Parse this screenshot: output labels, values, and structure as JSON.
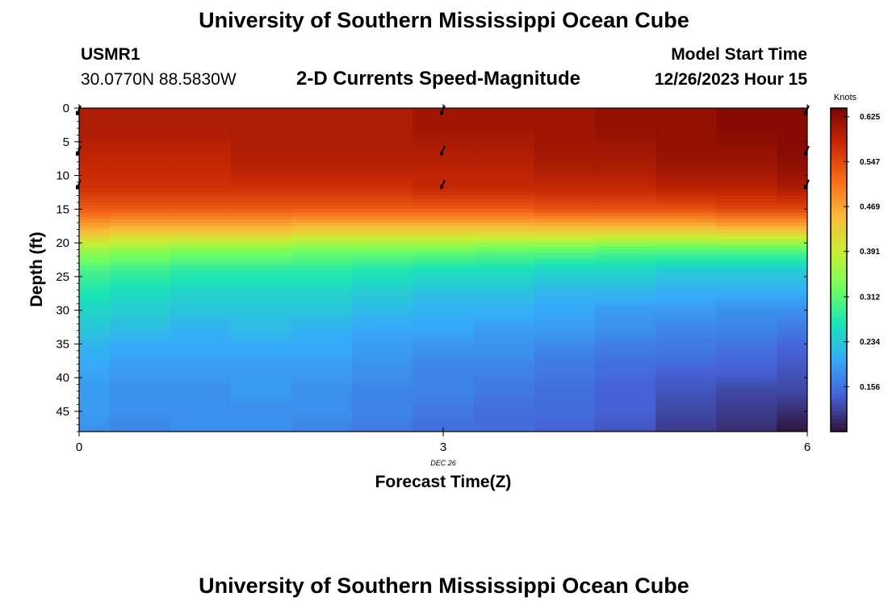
{
  "header": {
    "title": "University of Southern Mississippi Ocean Cube",
    "station": "USMR1",
    "coords": "30.0770N  88.5830W",
    "chart_subtitle": "2-D Currents Speed-Magnitude",
    "model_start_label": "Model Start Time",
    "model_start_value": "12/26/2023 Hour 15"
  },
  "footer": {
    "title": "University of Southern Mississippi Ocean Cube"
  },
  "colors": {
    "colormap": [
      "#30123b",
      "#4662d7",
      "#36aaf9",
      "#1ae4b6",
      "#72fe5e",
      "#c8ef34",
      "#faba39",
      "#f66b19",
      "#ca2a04",
      "#7a0403"
    ]
  },
  "chart_data": {
    "type": "heatmap",
    "title": "2-D Currents Speed-Magnitude",
    "xlabel": "Forecast Time(Z)",
    "ylabel": "Depth (ft)",
    "x_ticks": [
      "0",
      "3",
      "6"
    ],
    "x_date_label": "DEC 26",
    "y_ticks": [
      "0",
      "5",
      "10",
      "15",
      "20",
      "25",
      "30",
      "35",
      "40",
      "45"
    ],
    "xlim": [
      0,
      6
    ],
    "ylim": [
      48,
      0
    ],
    "colorbar": {
      "label": "Knots",
      "ticks": [
        "0.625",
        "0.547",
        "0.469",
        "0.391",
        "0.312",
        "0.234",
        "0.156"
      ],
      "range": [
        0.078,
        0.64
      ]
    },
    "time_columns": [
      0,
      0.5,
      1,
      1.5,
      2,
      2.5,
      3,
      3.5,
      4,
      4.5,
      5,
      5.5,
      6
    ],
    "depths": [
      0,
      3,
      6,
      9,
      12,
      15,
      18,
      21,
      24,
      27,
      30,
      33,
      36,
      39,
      42,
      45,
      48
    ],
    "values": [
      [
        0.6,
        0.6,
        0.59,
        0.58,
        0.57,
        0.53,
        0.46,
        0.36,
        0.3,
        0.27,
        0.25,
        0.23,
        0.21,
        0.2,
        0.19,
        0.19,
        0.18
      ],
      [
        0.6,
        0.6,
        0.59,
        0.58,
        0.57,
        0.53,
        0.45,
        0.35,
        0.29,
        0.26,
        0.24,
        0.22,
        0.2,
        0.19,
        0.18,
        0.18,
        0.17
      ],
      [
        0.6,
        0.6,
        0.59,
        0.58,
        0.57,
        0.53,
        0.45,
        0.34,
        0.28,
        0.25,
        0.23,
        0.21,
        0.2,
        0.19,
        0.18,
        0.18,
        0.18
      ],
      [
        0.6,
        0.6,
        0.6,
        0.59,
        0.57,
        0.53,
        0.45,
        0.34,
        0.28,
        0.25,
        0.23,
        0.22,
        0.2,
        0.19,
        0.19,
        0.18,
        0.18
      ],
      [
        0.6,
        0.6,
        0.6,
        0.59,
        0.57,
        0.53,
        0.44,
        0.33,
        0.28,
        0.25,
        0.23,
        0.21,
        0.2,
        0.19,
        0.18,
        0.18,
        0.17
      ],
      [
        0.6,
        0.6,
        0.6,
        0.59,
        0.57,
        0.53,
        0.44,
        0.33,
        0.27,
        0.24,
        0.22,
        0.2,
        0.19,
        0.18,
        0.17,
        0.17,
        0.16
      ],
      [
        0.61,
        0.61,
        0.6,
        0.59,
        0.58,
        0.53,
        0.44,
        0.33,
        0.26,
        0.23,
        0.21,
        0.2,
        0.18,
        0.17,
        0.17,
        0.16,
        0.15
      ],
      [
        0.61,
        0.61,
        0.6,
        0.59,
        0.58,
        0.53,
        0.44,
        0.32,
        0.26,
        0.23,
        0.21,
        0.19,
        0.18,
        0.17,
        0.16,
        0.15,
        0.15
      ],
      [
        0.61,
        0.61,
        0.61,
        0.6,
        0.58,
        0.54,
        0.44,
        0.32,
        0.25,
        0.22,
        0.2,
        0.19,
        0.17,
        0.16,
        0.15,
        0.15,
        0.14
      ],
      [
        0.62,
        0.62,
        0.61,
        0.6,
        0.58,
        0.54,
        0.44,
        0.31,
        0.25,
        0.22,
        0.19,
        0.18,
        0.16,
        0.15,
        0.14,
        0.14,
        0.13
      ],
      [
        0.62,
        0.62,
        0.62,
        0.61,
        0.59,
        0.54,
        0.44,
        0.31,
        0.24,
        0.21,
        0.19,
        0.17,
        0.16,
        0.14,
        0.13,
        0.12,
        0.11
      ],
      [
        0.63,
        0.63,
        0.62,
        0.61,
        0.59,
        0.55,
        0.45,
        0.31,
        0.24,
        0.21,
        0.18,
        0.17,
        0.15,
        0.14,
        0.12,
        0.11,
        0.1
      ],
      [
        0.63,
        0.63,
        0.63,
        0.62,
        0.6,
        0.55,
        0.45,
        0.31,
        0.24,
        0.21,
        0.18,
        0.16,
        0.14,
        0.13,
        0.12,
        0.1,
        0.08
      ]
    ],
    "arrows": [
      {
        "time": 0,
        "depths": [
          0,
          6,
          11
        ]
      },
      {
        "time": 3,
        "depths": [
          0,
          6,
          11
        ]
      },
      {
        "time": 6,
        "depths": [
          0,
          6,
          11
        ]
      }
    ]
  }
}
